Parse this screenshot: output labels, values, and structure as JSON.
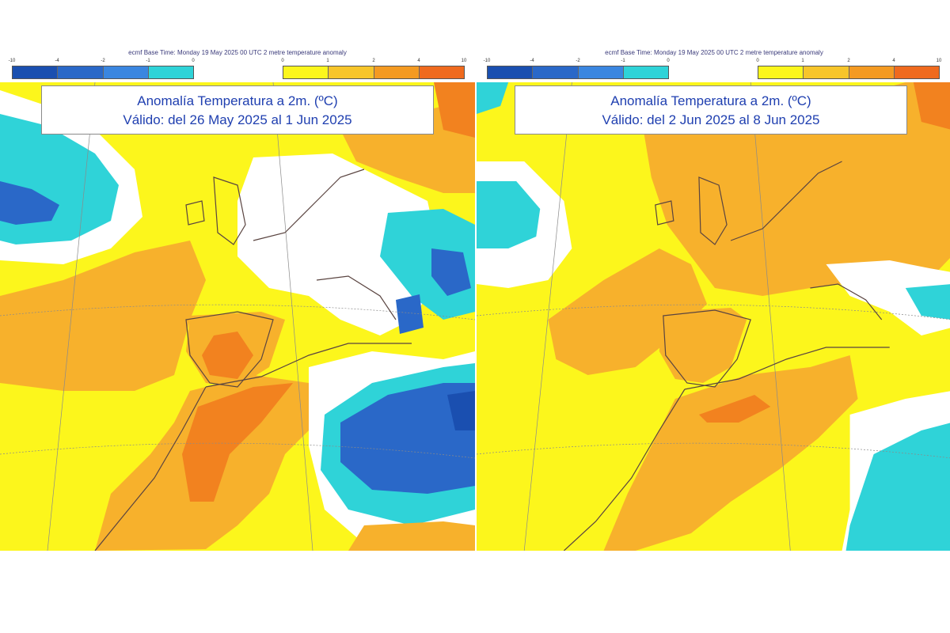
{
  "panels": [
    {
      "header": "ecmf  Base Time: Monday 19 May 2025 00 UTC 2 metre temperature anomaly",
      "title_line1": "Anomalía Temperatura a 2m. (ºC)",
      "title_line2": "Válido: del 26 May 2025 al 1 Jun 2025"
    },
    {
      "header": "ecmf  Base Time: Monday 19 May 2025 00 UTC 2 metre temperature anomaly",
      "title_line1": "Anomalía Temperatura a 2m. (ºC)",
      "title_line2": "Válido: del 2 Jun 2025 al 8 Jun 2025"
    }
  ],
  "colorbar": {
    "cold_ticks": [
      "-10",
      "-4",
      "-2",
      "-1",
      "0"
    ],
    "warm_ticks": [
      "0",
      "1",
      "2",
      "4",
      "10"
    ],
    "cold_colors": [
      "#1a4fb0",
      "#2a68c8",
      "#3a86e0",
      "#2fd3d8"
    ],
    "warm_colors": [
      "#fcf61c",
      "#f7c52a",
      "#f49a22",
      "#ef6a1e"
    ]
  },
  "map_colors": {
    "neutral": "#ffffff",
    "slight_warm": "#fcf61c",
    "warm": "#f7b12c",
    "very_warm": "#f2821f",
    "slight_cold": "#2fd3d8",
    "cold": "#3a86e0",
    "very_cold": "#1a4fb0",
    "coast": "#5a4440",
    "grid": "#8a8a8a"
  }
}
